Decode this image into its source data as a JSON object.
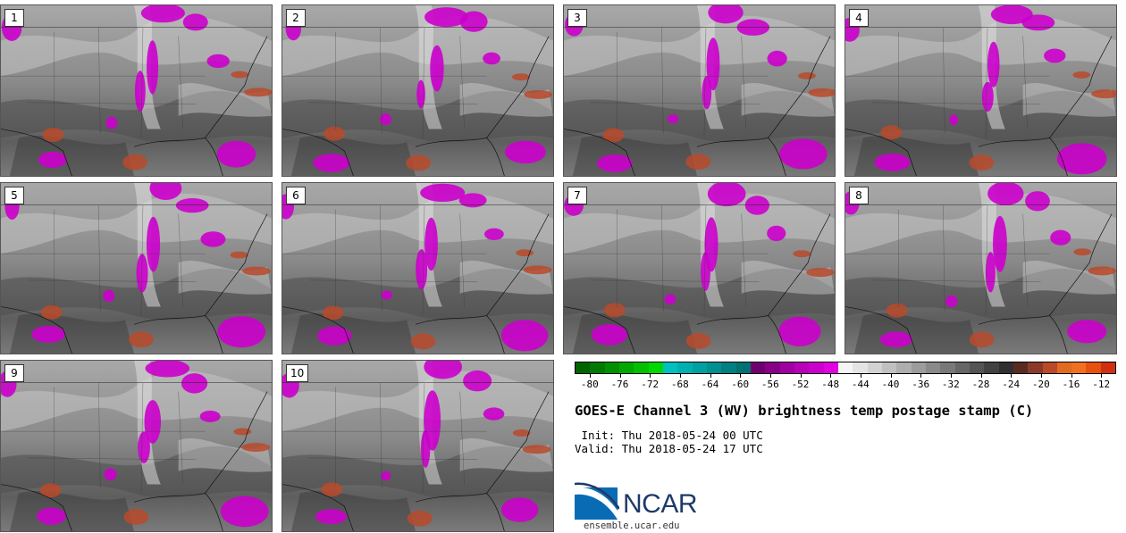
{
  "panels": [
    {
      "number": "1"
    },
    {
      "number": "2"
    },
    {
      "number": "3"
    },
    {
      "number": "4"
    },
    {
      "number": "5"
    },
    {
      "number": "6"
    },
    {
      "number": "7"
    },
    {
      "number": "8"
    },
    {
      "number": "9"
    },
    {
      "number": "10"
    }
  ],
  "colorbar": {
    "tick_labels": [
      "-80",
      "-76",
      "-72",
      "-68",
      "-64",
      "-60",
      "-56",
      "-52",
      "-48",
      "-44",
      "-40",
      "-36",
      "-32",
      "-28",
      "-24",
      "-20",
      "-16",
      "-12"
    ],
    "min": -82,
    "max": -10,
    "step": 2,
    "colors": [
      "#006400",
      "#007a00",
      "#009000",
      "#00a800",
      "#00c000",
      "#00d800",
      "#00c0c0",
      "#00b0b0",
      "#00a0a0",
      "#009090",
      "#008080",
      "#007070",
      "#700070",
      "#880088",
      "#a000a0",
      "#b800b8",
      "#cc00cc",
      "#e000e0",
      "#f5f5f5",
      "#e4e4e4",
      "#d2d2d2",
      "#c0c0c0",
      "#aeaeae",
      "#9c9c9c",
      "#8a8a8a",
      "#787878",
      "#666666",
      "#545454",
      "#424242",
      "#303030",
      "#5a2a20",
      "#8b3a2a",
      "#b84a2a",
      "#e06a20",
      "#f07020",
      "#e85010",
      "#d03010"
    ]
  },
  "title": "GOES-E Channel 3 (WV) brightness temp postage stamp (C)",
  "init": " Init: Thu 2018-05-24 00 UTC",
  "valid": "Valid: Thu 2018-05-24 17 UTC",
  "logo": {
    "text": "NCAR",
    "url": "ensemble.ucar.edu"
  }
}
